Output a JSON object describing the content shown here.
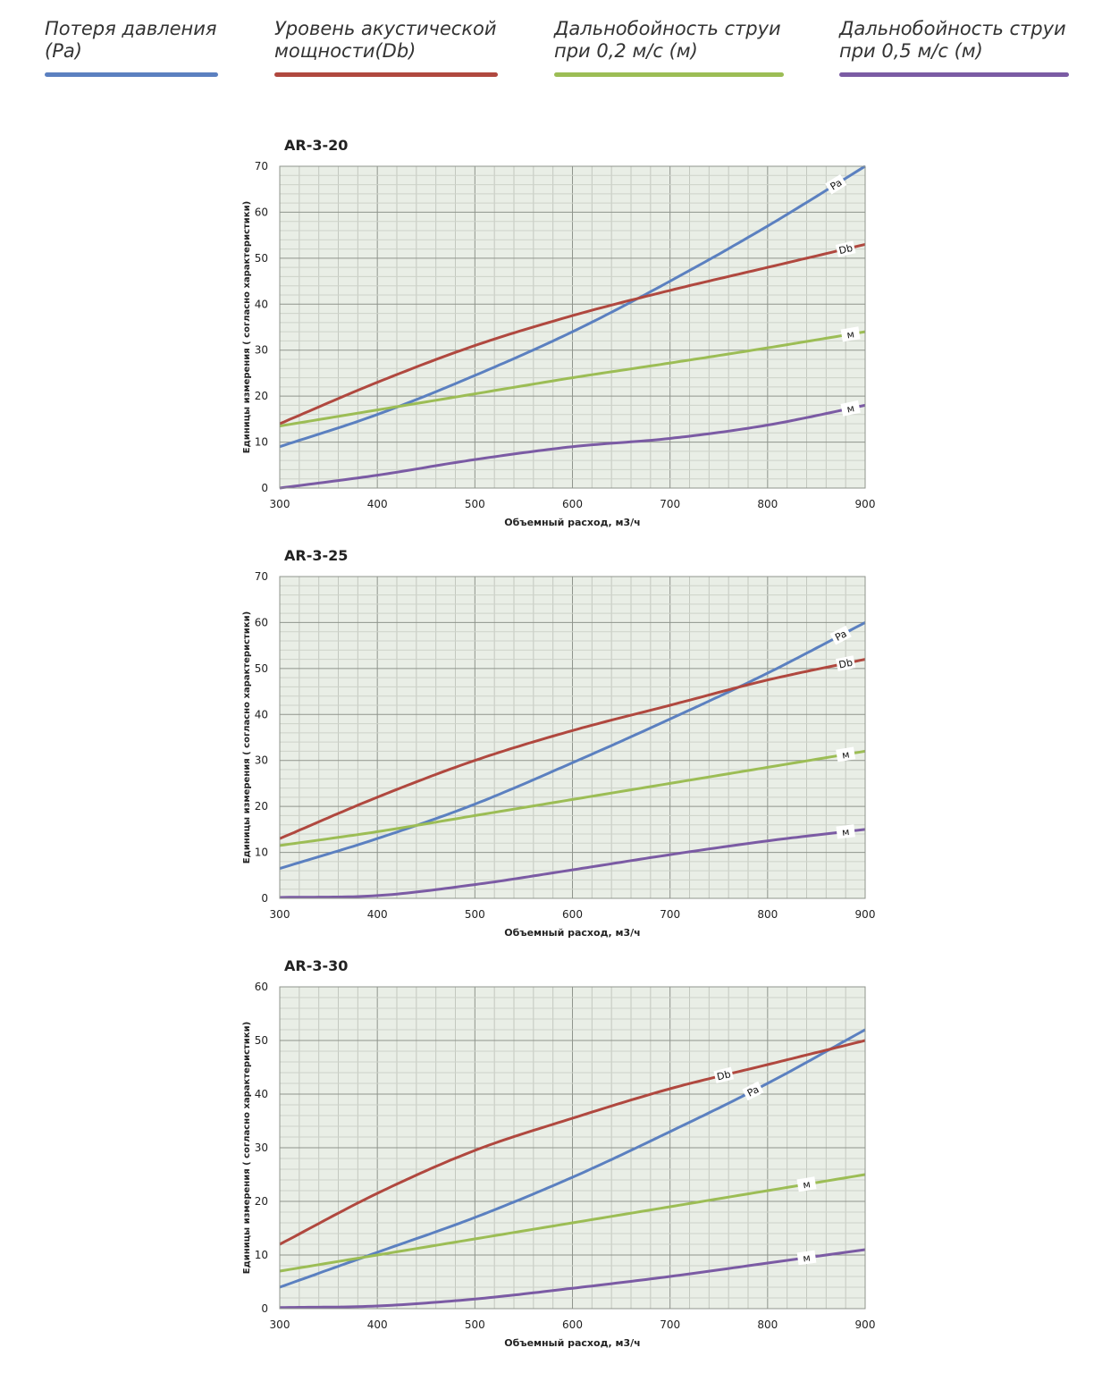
{
  "legend": [
    {
      "label": "Потеря давления\n(Pa)",
      "color": "#5b80c0"
    },
    {
      "label": "Уровень акустической\nмощности(Db)",
      "color": "#b0483f"
    },
    {
      "label": "Дальнобойность струи\nпри 0,2 м/с (м)",
      "color": "#9cbd55"
    },
    {
      "label": "Дальнобойность струи\nпри 0,5 м/с (м)",
      "color": "#7b5ba4"
    }
  ],
  "chart_data": [
    {
      "type": "line",
      "title": "AR-3-20",
      "xlabel": "Объемный расход, м3/ч",
      "ylabel": "Единицы измерения ( согласно характеристики)",
      "xlim": [
        300,
        900
      ],
      "ylim": [
        0,
        70
      ],
      "xticks": [
        "300",
        "400",
        "500",
        "600",
        "700",
        "800",
        "900"
      ],
      "yticks": [
        "0",
        "10",
        "20",
        "30",
        "40",
        "50",
        "60",
        "70"
      ],
      "grid": true,
      "x": [
        300,
        400,
        500,
        600,
        700,
        800,
        900
      ],
      "series": [
        {
          "name": "Pa",
          "label": "Pa",
          "color": "#5b80c0",
          "label_at": 870,
          "values": [
            9,
            16,
            24.5,
            34,
            45,
            57,
            70
          ]
        },
        {
          "name": "Db",
          "label": "Db",
          "color": "#b0483f",
          "label_at": 880,
          "values": [
            14,
            23,
            31,
            37.5,
            43,
            48,
            53
          ]
        },
        {
          "name": "м (0,2 м/с)",
          "label": "м",
          "color": "#9cbd55",
          "label_at": 885,
          "values": [
            13.5,
            17,
            20.5,
            24,
            27.2,
            30.5,
            34
          ]
        },
        {
          "name": "м (0,5 м/с)",
          "label": "м",
          "color": "#7b5ba4",
          "label_at": 885,
          "values": [
            0,
            2.8,
            6.2,
            9,
            10.8,
            13.7,
            18
          ]
        }
      ]
    },
    {
      "type": "line",
      "title": "AR-3-25",
      "xlabel": "Объемный расход, м3/ч",
      "ylabel": "Единицы измерения ( согласно характеристики)",
      "xlim": [
        300,
        900
      ],
      "ylim": [
        0,
        70
      ],
      "xticks": [
        "300",
        "400",
        "500",
        "600",
        "700",
        "800",
        "900"
      ],
      "yticks": [
        "0",
        "10",
        "20",
        "30",
        "40",
        "50",
        "60",
        "70"
      ],
      "grid": true,
      "x": [
        300,
        400,
        500,
        600,
        700,
        800,
        900
      ],
      "series": [
        {
          "name": "Pa",
          "label": "Pa",
          "color": "#5b80c0",
          "label_at": 875,
          "values": [
            6.5,
            13,
            20.5,
            29.5,
            39,
            49,
            60
          ]
        },
        {
          "name": "Db",
          "label": "Db",
          "color": "#b0483f",
          "label_at": 880,
          "values": [
            13,
            22,
            30,
            36.5,
            42,
            47.5,
            52
          ]
        },
        {
          "name": "м (0,2 м/с)",
          "label": "м",
          "color": "#9cbd55",
          "label_at": 880,
          "values": [
            11.5,
            14.5,
            18,
            21.5,
            25,
            28.5,
            32
          ]
        },
        {
          "name": "м (0,5 м/с)",
          "label": "м",
          "color": "#7b5ba4",
          "label_at": 880,
          "values": [
            0.2,
            0.6,
            3,
            6.2,
            9.5,
            12.5,
            15
          ]
        }
      ]
    },
    {
      "type": "line",
      "title": "AR-3-30",
      "xlabel": "Объемный расход, м3/ч",
      "ylabel": "Единицы измерения ( согласно характеристики)",
      "xlim": [
        300,
        900
      ],
      "ylim": [
        0,
        60
      ],
      "xticks": [
        "300",
        "400",
        "500",
        "600",
        "700",
        "800",
        "900"
      ],
      "yticks": [
        "0",
        "10",
        "20",
        "30",
        "40",
        "50",
        "60"
      ],
      "grid": true,
      "x": [
        300,
        400,
        500,
        600,
        700,
        800,
        900
      ],
      "series": [
        {
          "name": "Pa",
          "label": "Pa",
          "color": "#5b80c0",
          "label_at": 785,
          "values": [
            4,
            10.5,
            17,
            24.5,
            33,
            42,
            52
          ]
        },
        {
          "name": "Db",
          "label": "Db",
          "color": "#b0483f",
          "label_at": 755,
          "values": [
            12,
            21.5,
            29.5,
            35.5,
            41,
            45.5,
            50
          ]
        },
        {
          "name": "м (0,2 м/с)",
          "label": "м",
          "color": "#9cbd55",
          "label_at": 840,
          "values": [
            7,
            10,
            13,
            16,
            19,
            22,
            25
          ]
        },
        {
          "name": "м (0,5 м/с)",
          "label": "м",
          "color": "#7b5ba4",
          "label_at": 840,
          "values": [
            0.2,
            0.5,
            1.8,
            3.8,
            6,
            8.5,
            11
          ]
        }
      ]
    }
  ]
}
